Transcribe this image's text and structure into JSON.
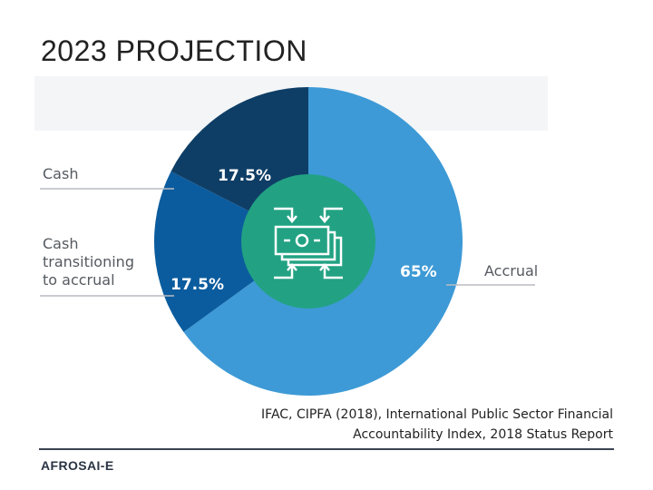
{
  "title": "2023 PROJECTION",
  "chart_data": {
    "type": "pie",
    "donut": true,
    "slices": [
      {
        "label": "Accrual",
        "value": 65,
        "display": "65%",
        "color": "#3d9ad6"
      },
      {
        "label": "Cash transitioning to accrual",
        "value": 17.5,
        "display": "17.5%",
        "color": "#0b5c9e"
      },
      {
        "label": "Cash",
        "value": 17.5,
        "display": "17.5%",
        "color": "#0e3e66"
      }
    ],
    "center_icon": "money-exchange-icon",
    "center_color": "#22a283"
  },
  "labels": {
    "cash": "Cash",
    "transition_lines": [
      "Cash",
      "transitioning",
      "to accrual"
    ],
    "accrual": "Accrual"
  },
  "source": {
    "line1": "IFAC, CIPFA (2018), International Public Sector Financial",
    "line2": "Accountability Index, 2018 Status Report"
  },
  "footer": {
    "brand": "AFROSAI-E"
  }
}
